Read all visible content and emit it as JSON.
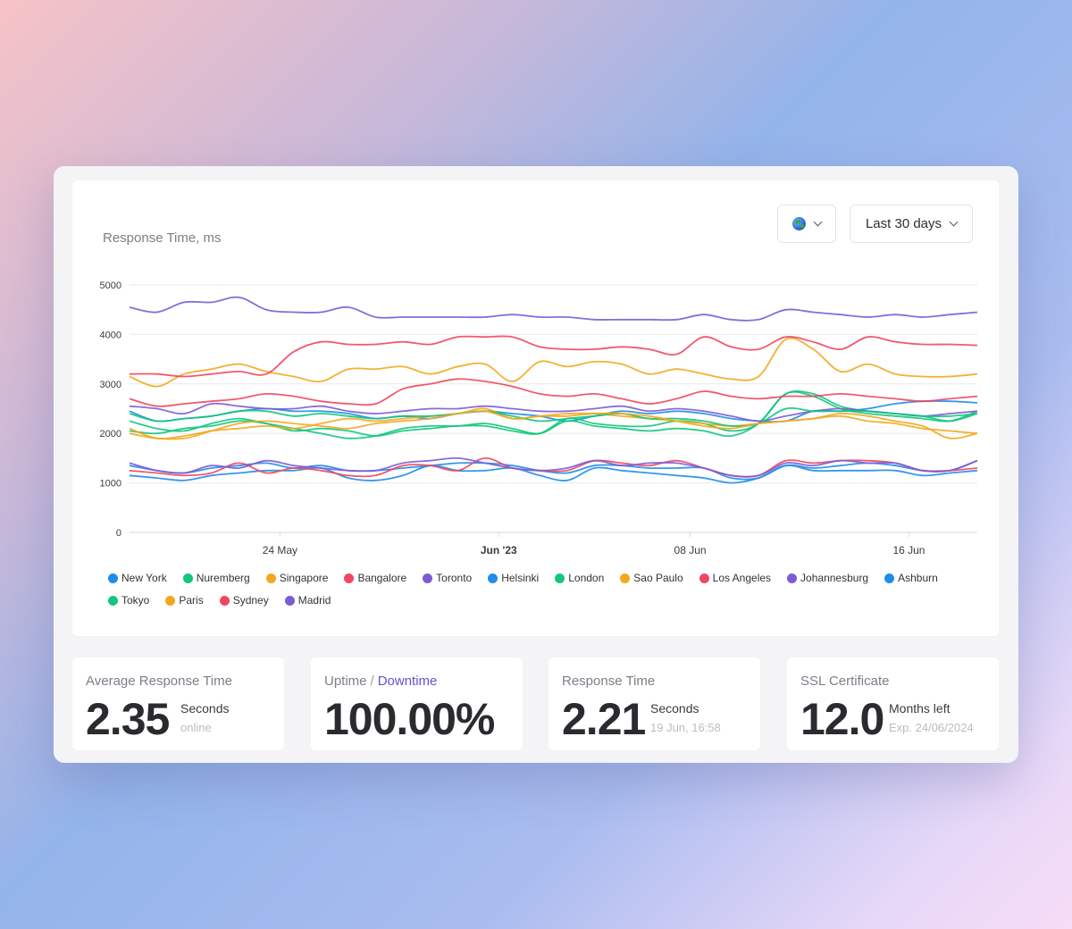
{
  "chart_card": {
    "title": "Response Time, ms",
    "region_icon": "globe-icon",
    "range_label": "Last 30 days"
  },
  "chart_data": {
    "type": "line",
    "title": "Response Time, ms",
    "ylim": [
      0,
      5000
    ],
    "y_ticks": [
      "0",
      "1000",
      "2000",
      "3000",
      "4000",
      "5000"
    ],
    "x_ticks": [
      {
        "label": "24 May",
        "x": 5.5,
        "bold": false
      },
      {
        "label": "Jun '23",
        "x": 13.5,
        "bold": true
      },
      {
        "label": "08 Jun",
        "x": 20.5,
        "bold": false
      },
      {
        "label": "16 Jun",
        "x": 28.5,
        "bold": false
      }
    ],
    "x_range": [
      0,
      31
    ],
    "grid": true,
    "legend_position": "bottom",
    "series": [
      {
        "name": "New York",
        "color": "#1f8de8",
        "values": [
          2450,
          2250,
          2300,
          2350,
          2450,
          2500,
          2450,
          2450,
          2400,
          2300,
          2350,
          2300,
          2400,
          2450,
          2400,
          2350,
          2250,
          2350,
          2450,
          2400,
          2450,
          2400,
          2300,
          2250,
          2250,
          2450,
          2450,
          2500,
          2600,
          2650,
          2650,
          2620
        ]
      },
      {
        "name": "Nuremberg",
        "color": "#12c67d",
        "values": [
          2250,
          2100,
          2050,
          2200,
          2300,
          2200,
          2100,
          2000,
          1900,
          1950,
          2100,
          2150,
          2150,
          2200,
          2100,
          2000,
          2250,
          2150,
          2100,
          2050,
          2100,
          2050,
          1950,
          2200,
          2800,
          2750,
          2500,
          2400,
          2350,
          2300,
          2250,
          2450
        ]
      },
      {
        "name": "Singapore",
        "color": "#f2a81d",
        "values": [
          3150,
          2950,
          3200,
          3300,
          3400,
          3250,
          3150,
          3050,
          3300,
          3300,
          3350,
          3200,
          3350,
          3400,
          3050,
          3450,
          3350,
          3450,
          3400,
          3200,
          3300,
          3200,
          3100,
          3150,
          3900,
          3700,
          3250,
          3400,
          3200,
          3150,
          3150,
          3200
        ]
      },
      {
        "name": "Bangalore",
        "color": "#f04761",
        "values": [
          3200,
          3200,
          3150,
          3200,
          3250,
          3200,
          3650,
          3850,
          3800,
          3800,
          3850,
          3800,
          3950,
          3950,
          3950,
          3750,
          3700,
          3700,
          3750,
          3700,
          3600,
          3950,
          3750,
          3700,
          3950,
          3850,
          3700,
          3950,
          3850,
          3800,
          3800,
          3780
        ]
      },
      {
        "name": "Toronto",
        "color": "#7c5cd6",
        "values": [
          4550,
          4450,
          4650,
          4650,
          4750,
          4500,
          4450,
          4450,
          4550,
          4350,
          4350,
          4350,
          4350,
          4350,
          4400,
          4350,
          4350,
          4300,
          4300,
          4300,
          4300,
          4400,
          4300,
          4300,
          4500,
          4450,
          4400,
          4350,
          4400,
          4350,
          4400,
          4450
        ]
      },
      {
        "name": "Helsinki",
        "color": "#1f8de8",
        "values": [
          1150,
          1100,
          1050,
          1150,
          1200,
          1250,
          1250,
          1300,
          1100,
          1050,
          1150,
          1350,
          1250,
          1250,
          1300,
          1150,
          1050,
          1300,
          1250,
          1200,
          1150,
          1100,
          1000,
          1100,
          1350,
          1250,
          1250,
          1250,
          1250,
          1150,
          1200,
          1250
        ]
      },
      {
        "name": "London",
        "color": "#12c67d",
        "values": [
          2050,
          2000,
          2100,
          2150,
          2250,
          2200,
          2050,
          2100,
          2050,
          1950,
          2050,
          2100,
          2150,
          2150,
          2050,
          2000,
          2300,
          2200,
          2150,
          2150,
          2250,
          2200,
          2050,
          2200,
          2800,
          2800,
          2550,
          2450,
          2400,
          2350,
          2250,
          2400
        ]
      },
      {
        "name": "Sao Paulo",
        "color": "#f2a81d",
        "values": [
          2100,
          1900,
          1950,
          2050,
          2100,
          2150,
          2100,
          2200,
          2300,
          2250,
          2300,
          2350,
          2400,
          2500,
          2300,
          2350,
          2400,
          2400,
          2350,
          2300,
          2250,
          2200,
          2150,
          2200,
          2250,
          2300,
          2400,
          2350,
          2250,
          2150,
          1900,
          2000
        ]
      },
      {
        "name": "Los Angeles",
        "color": "#f04761",
        "values": [
          2700,
          2550,
          2600,
          2650,
          2700,
          2800,
          2750,
          2650,
          2600,
          2600,
          2900,
          3000,
          3100,
          3050,
          2950,
          2800,
          2750,
          2800,
          2700,
          2600,
          2700,
          2850,
          2750,
          2700,
          2750,
          2750,
          2800,
          2750,
          2700,
          2650,
          2700,
          2750
        ]
      },
      {
        "name": "Johannesburg",
        "color": "#7c5cd6",
        "values": [
          2550,
          2500,
          2400,
          2600,
          2550,
          2500,
          2500,
          2550,
          2450,
          2400,
          2450,
          2500,
          2500,
          2550,
          2500,
          2450,
          2450,
          2500,
          2550,
          2450,
          2500,
          2450,
          2350,
          2250,
          2350,
          2450,
          2500,
          2450,
          2400,
          2350,
          2400,
          2450
        ]
      },
      {
        "name": "Ashburn",
        "color": "#1f8de8",
        "values": [
          1350,
          1250,
          1200,
          1300,
          1350,
          1400,
          1300,
          1350,
          1250,
          1250,
          1300,
          1350,
          1400,
          1400,
          1350,
          1250,
          1200,
          1350,
          1350,
          1300,
          1300,
          1300,
          1100,
          1100,
          1350,
          1300,
          1350,
          1400,
          1350,
          1250,
          1250,
          1450
        ]
      },
      {
        "name": "Tokyo",
        "color": "#12c67d",
        "values": [
          2400,
          2250,
          2300,
          2350,
          2450,
          2450,
          2350,
          2400,
          2350,
          2300,
          2350,
          2350,
          2400,
          2450,
          2350,
          2250,
          2300,
          2350,
          2400,
          2300,
          2300,
          2250,
          2150,
          2200,
          2500,
          2450,
          2450,
          2450,
          2400,
          2350,
          2350,
          2400
        ]
      },
      {
        "name": "Paris",
        "color": "#f2a81d",
        "values": [
          2000,
          1900,
          1900,
          2050,
          2200,
          2250,
          2200,
          2150,
          2100,
          2200,
          2250,
          2300,
          2400,
          2450,
          2300,
          2350,
          2350,
          2400,
          2400,
          2350,
          2250,
          2150,
          2100,
          2200,
          2250,
          2300,
          2350,
          2250,
          2200,
          2100,
          2050,
          2000
        ]
      },
      {
        "name": "Sydney",
        "color": "#f04761",
        "values": [
          1250,
          1200,
          1150,
          1200,
          1400,
          1200,
          1300,
          1250,
          1150,
          1150,
          1350,
          1350,
          1250,
          1500,
          1300,
          1250,
          1250,
          1450,
          1400,
          1350,
          1450,
          1300,
          1150,
          1150,
          1450,
          1400,
          1450,
          1450,
          1400,
          1250,
          1250,
          1300
        ]
      },
      {
        "name": "Madrid",
        "color": "#7c5cd6",
        "values": [
          1400,
          1250,
          1200,
          1350,
          1300,
          1450,
          1350,
          1300,
          1250,
          1250,
          1400,
          1450,
          1500,
          1400,
          1300,
          1250,
          1300,
          1450,
          1350,
          1400,
          1400,
          1300,
          1150,
          1150,
          1400,
          1350,
          1450,
          1400,
          1400,
          1250,
          1250,
          1450
        ]
      }
    ]
  },
  "stats": [
    {
      "label": "Average Response Time",
      "value": "2.35",
      "unit": "Seconds",
      "sub": "online"
    },
    {
      "label": "Uptime",
      "label_sep": "/",
      "label_accent": "Downtime",
      "value": "100.00%",
      "unit": "",
      "sub": ""
    },
    {
      "label": "Response Time",
      "value": "2.21",
      "unit": "Seconds",
      "sub": "19 Jun, 16:58"
    },
    {
      "label": "SSL Certificate",
      "value": "12.0",
      "unit": "Months left",
      "sub": "Exp. 24/06/2024"
    }
  ]
}
